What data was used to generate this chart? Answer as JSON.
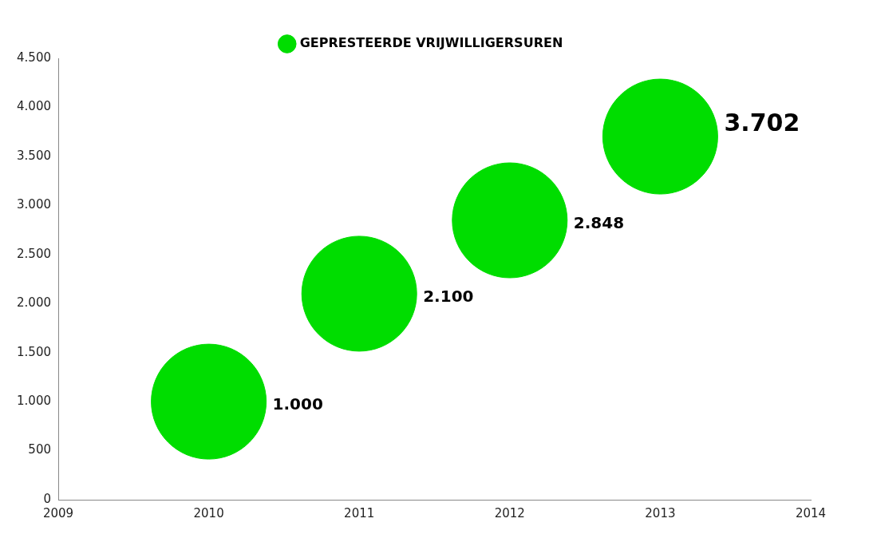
{
  "chart_data": {
    "type": "bubble",
    "x": [
      2010,
      2011,
      2012,
      2013
    ],
    "series": [
      {
        "name": "GEPRESTEERDE VRIJWILLIGERSUREN",
        "color": "#00dd00",
        "values": [
          1000,
          2100,
          2848,
          3702
        ],
        "sizes": [
          1,
          1,
          1,
          1
        ],
        "value_labels": [
          "1.000",
          "2.100",
          "2.848",
          "3.702"
        ]
      }
    ],
    "xlim": [
      2009,
      2014
    ],
    "xticks": [
      2009,
      2010,
      2011,
      2012,
      2013,
      2014
    ],
    "ylim": [
      0,
      4500
    ],
    "yticks": [
      0,
      500,
      {
        "value": 1000,
        "label": "1.000"
      },
      {
        "value": 1500,
        "label": "1.500"
      },
      {
        "value": 2000,
        "label": "2.000"
      },
      {
        "value": 2500,
        "label": "2.500"
      },
      {
        "value": 3000,
        "label": "3.000"
      },
      {
        "value": 3500,
        "label": "3.500"
      },
      {
        "value": 4000,
        "label": "4.000"
      },
      {
        "value": 4500,
        "label": "4.500"
      }
    ],
    "grid": false,
    "legend": "top"
  }
}
